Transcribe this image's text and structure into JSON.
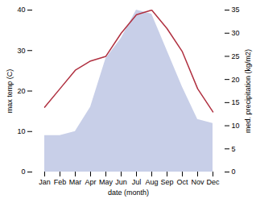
{
  "chart_data": {
    "type": "line",
    "xlabel": "date (month)",
    "ylabel": "max temp (C)",
    "y2label": "med. precipitation (kg/m2)",
    "categories": [
      "Jan",
      "Feb",
      "Mar",
      "Apr",
      "May",
      "Jun",
      "Jul",
      "Aug",
      "Sep",
      "Oct",
      "Nov",
      "Dec"
    ],
    "series": [
      {
        "type": "area",
        "color": "#c8cfe8",
        "values": [
          9,
          9,
          10,
          16,
          28,
          33,
          40,
          39,
          30,
          21,
          13,
          12
        ]
      },
      {
        "type": "line",
        "color": "#b03040",
        "axis": "y2",
        "values": [
          14,
          18,
          22,
          24,
          25,
          30,
          34,
          35,
          31,
          26,
          18,
          13
        ]
      }
    ],
    "ylim": [
      0,
      40
    ],
    "yticks": [
      0,
      10,
      20,
      30,
      40
    ],
    "y2lim": [
      0,
      35
    ],
    "y2ticks": [
      0,
      5,
      10,
      15,
      20,
      25,
      30,
      35
    ],
    "grid": false
  }
}
